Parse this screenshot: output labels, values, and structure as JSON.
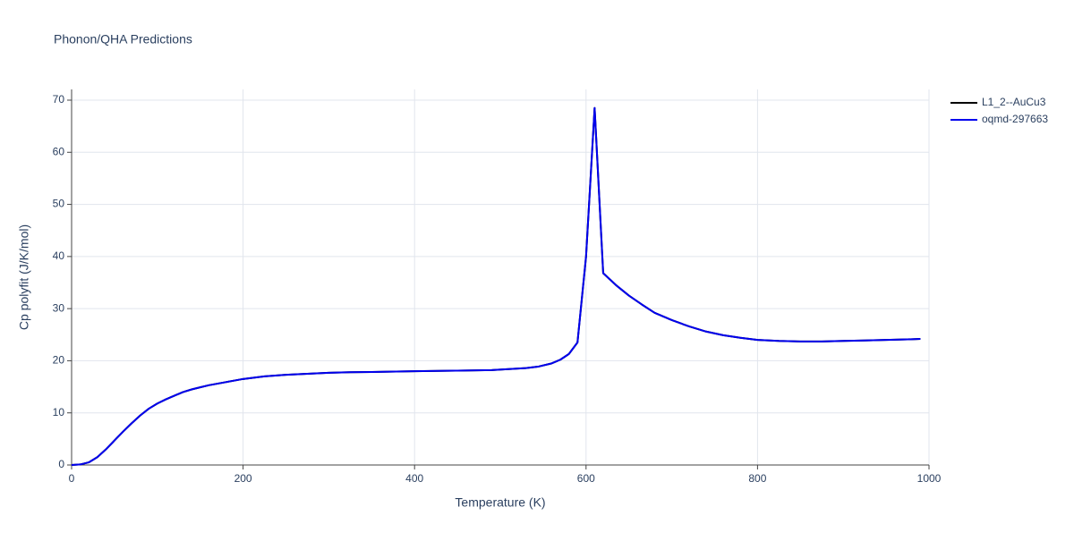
{
  "chart_data": {
    "type": "line",
    "title": "Phonon/QHA Predictions",
    "x_label": "Temperature (K)",
    "y_label": "Cp polyfit (J/K/mol)",
    "x": [
      0,
      10,
      20,
      30,
      40,
      50,
      60,
      70,
      80,
      90,
      100,
      110,
      120,
      130,
      140,
      150,
      160,
      170,
      180,
      190,
      200,
      225,
      250,
      275,
      300,
      325,
      350,
      400,
      450,
      490,
      510,
      530,
      545,
      560,
      570,
      580,
      590,
      600,
      610,
      620,
      635,
      650,
      665,
      680,
      700,
      720,
      740,
      760,
      780,
      800,
      825,
      850,
      875,
      900,
      925,
      950,
      975,
      990
    ],
    "series": [
      {
        "name": "L1_2--AuCu3",
        "color": "#000000",
        "values": [
          0,
          0.1,
          0.5,
          1.5,
          3,
          4.7,
          6.4,
          8,
          9.5,
          10.8,
          11.8,
          12.6,
          13.3,
          14,
          14.5,
          14.9,
          15.3,
          15.6,
          15.9,
          16.2,
          16.5,
          17,
          17.3,
          17.5,
          17.7,
          17.8,
          17.85,
          18,
          18.1,
          18.2,
          18.4,
          18.6,
          18.9,
          19.5,
          20.2,
          21.3,
          23.5,
          40,
          68.5,
          36.8,
          34.5,
          32.5,
          30.8,
          29.2,
          27.8,
          26.6,
          25.6,
          24.9,
          24.4,
          24,
          23.8,
          23.7,
          23.7,
          23.8,
          23.9,
          24,
          24.1,
          24.2
        ]
      },
      {
        "name": "oqmd-297663",
        "color": "#0000ee",
        "values": [
          0,
          0.1,
          0.5,
          1.5,
          3,
          4.7,
          6.4,
          8,
          9.5,
          10.8,
          11.8,
          12.6,
          13.3,
          14,
          14.5,
          14.9,
          15.3,
          15.6,
          15.9,
          16.2,
          16.5,
          17,
          17.3,
          17.5,
          17.7,
          17.8,
          17.85,
          18,
          18.1,
          18.2,
          18.4,
          18.6,
          18.9,
          19.5,
          20.2,
          21.3,
          23.5,
          40,
          68.5,
          36.8,
          34.5,
          32.5,
          30.8,
          29.2,
          27.8,
          26.6,
          25.6,
          24.9,
          24.4,
          24,
          23.8,
          23.7,
          23.7,
          23.8,
          23.9,
          24,
          24.1,
          24.2
        ]
      }
    ],
    "xlim": [
      0,
      1000
    ],
    "xticks": [
      0,
      200,
      400,
      600,
      800,
      1000
    ],
    "ylim": [
      0,
      70
    ],
    "yticks": [
      0,
      10,
      20,
      30,
      40,
      50,
      60,
      70
    ],
    "grid": true,
    "legend": "right"
  }
}
